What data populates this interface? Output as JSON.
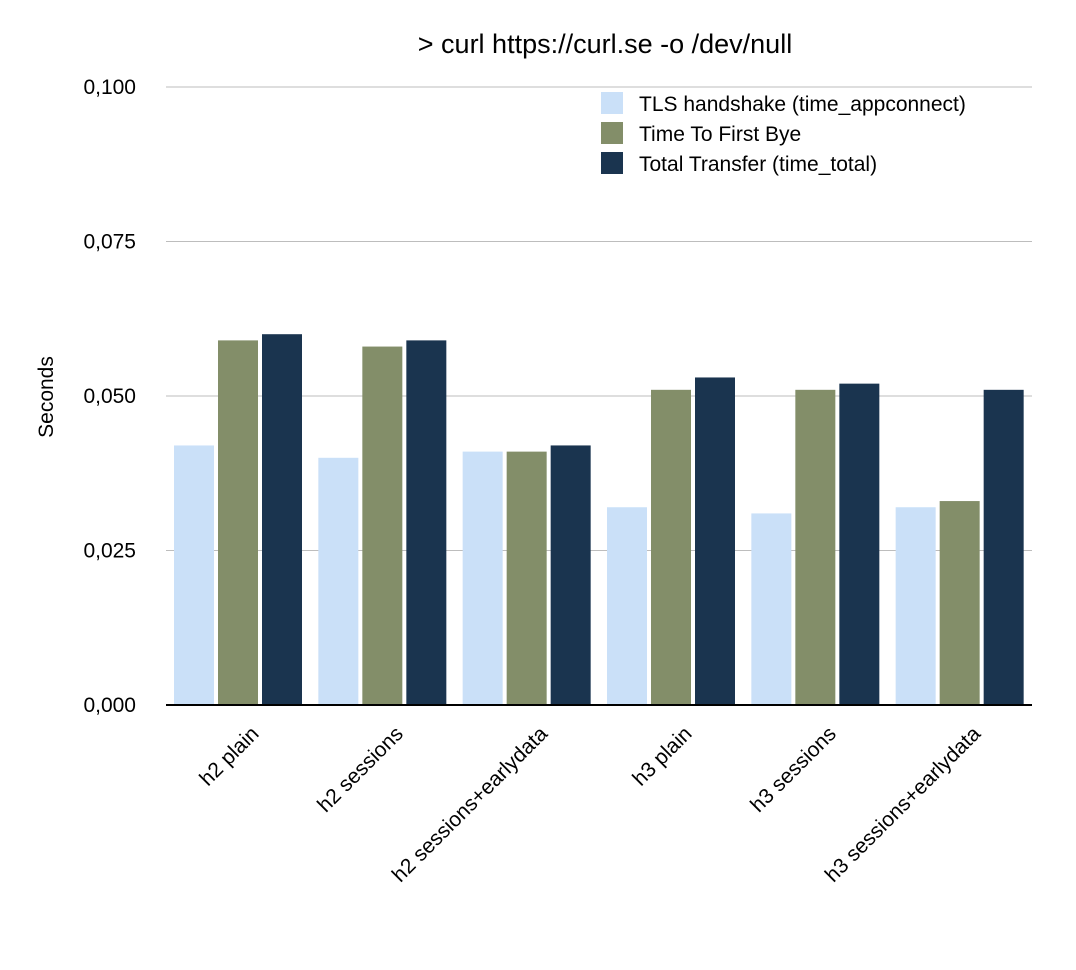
{
  "chart_data": {
    "type": "bar",
    "title": "> curl https://curl.se -o /dev/null",
    "ylabel": "Seconds",
    "xlabel": "",
    "ylim": [
      0,
      0.1
    ],
    "yticks": [
      "0,000",
      "0,025",
      "0,050",
      "0,075",
      "0,100"
    ],
    "ytick_values": [
      0,
      0.025,
      0.05,
      0.075,
      0.1
    ],
    "grid": true,
    "legend_position": "top-right",
    "categories": [
      "h2 plain",
      "h2 sessions",
      "h2 sessions+earlydata",
      "h3 plain",
      "h3 sessions",
      "h3 sessions+earlydata"
    ],
    "series": [
      {
        "name": "TLS handshake (time_appconnect)",
        "color": "#cae0f8",
        "values": [
          0.042,
          0.04,
          0.041,
          0.032,
          0.031,
          0.032
        ]
      },
      {
        "name": "Time To First Bye",
        "color": "#838e69",
        "values": [
          0.059,
          0.058,
          0.041,
          0.051,
          0.051,
          0.033
        ]
      },
      {
        "name": "Total Transfer (time_total)",
        "color": "#1a344f",
        "values": [
          0.06,
          0.059,
          0.042,
          0.053,
          0.052,
          0.051
        ]
      }
    ]
  }
}
